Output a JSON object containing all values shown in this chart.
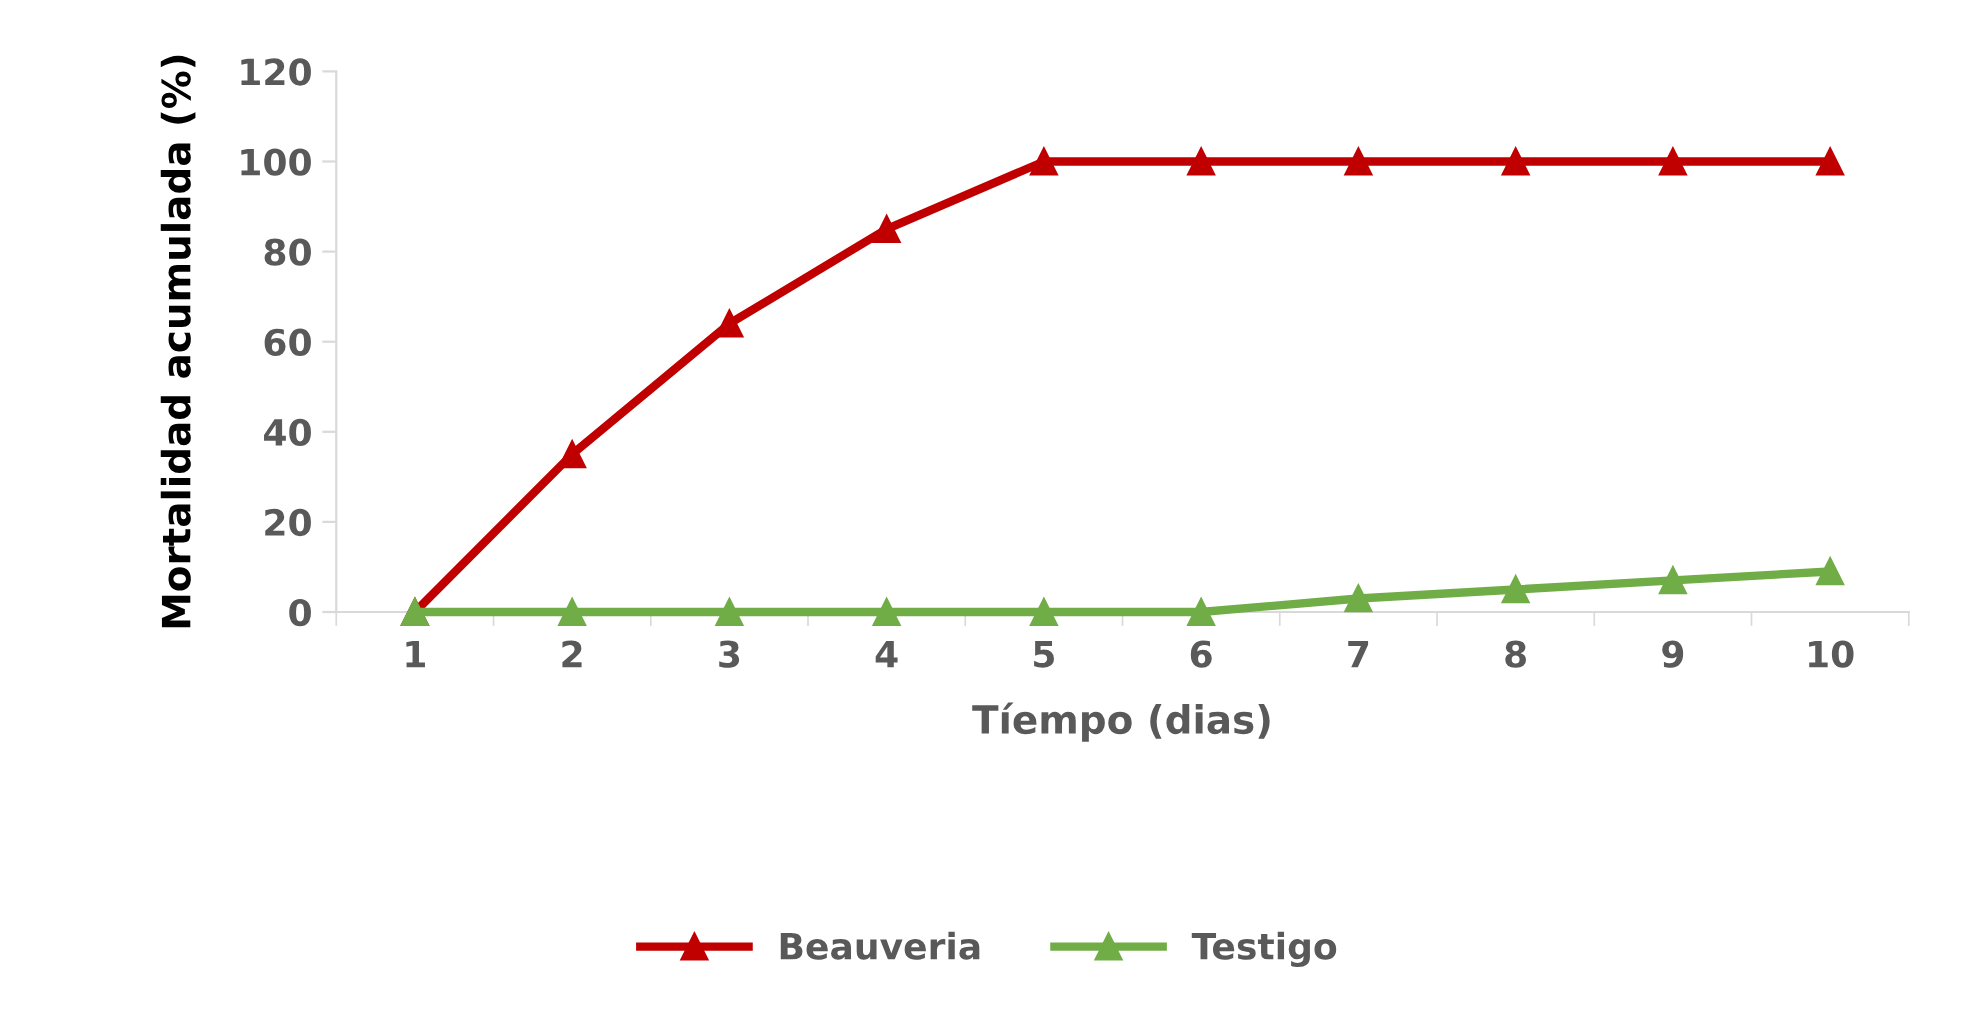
{
  "chart_data": {
    "type": "line",
    "xlabel": "Tíempo (dias)",
    "ylabel": "Mortalidad acumulada (%)",
    "categories": [
      "1",
      "2",
      "3",
      "4",
      "5",
      "6",
      "7",
      "8",
      "9",
      "10"
    ],
    "series": [
      {
        "name": "Beauveria",
        "color": "#c00000",
        "values": [
          0,
          35,
          64,
          85,
          100,
          100,
          100,
          100,
          100,
          100
        ]
      },
      {
        "name": "Testigo",
        "color": "#70ad47",
        "values": [
          0,
          0,
          0,
          0,
          0,
          0,
          3,
          5,
          7,
          9
        ]
      }
    ],
    "ylim": [
      0,
      120
    ],
    "yticks": [
      0,
      20,
      40,
      60,
      80,
      100,
      120
    ],
    "grid": false,
    "legend": "bottom",
    "marker": "triangle",
    "line_style": "solid"
  }
}
